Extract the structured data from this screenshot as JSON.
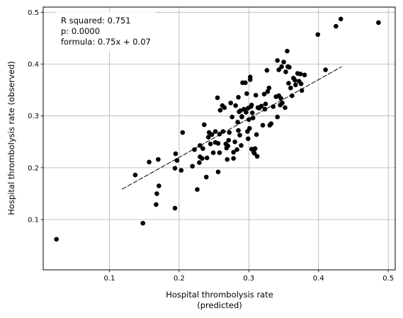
{
  "chart_data": {
    "type": "scatter",
    "xlabel": "Hospital thrombolysis rate",
    "xlabel_line2": "(predicted)",
    "ylabel": "Hospital thrombolysis rate (observed)",
    "xlim": [
      0.005,
      0.51
    ],
    "ylim": [
      0.003,
      0.51
    ],
    "xticks": [
      0.1,
      0.2,
      0.3,
      0.4,
      0.5
    ],
    "yticks": [
      0.1,
      0.2,
      0.3,
      0.4,
      0.5
    ],
    "xtick_labels": [
      "0.1",
      "0.2",
      "0.3",
      "0.4",
      "0.5"
    ],
    "ytick_labels": [
      "0.1",
      "0.2",
      "0.3",
      "0.4",
      "0.5"
    ],
    "grid": true,
    "legend": "top-left",
    "annotation": {
      "line1": "R squared: 0.751",
      "line2": "p: 0.0000",
      "line3": "formula: 0.75x + 0.07"
    },
    "fit_line": {
      "slope": 0.75,
      "intercept": 0.07,
      "x_range": [
        0.118,
        0.433
      ],
      "style": "dashed"
    },
    "point_color": "#000000",
    "points": [
      [
        0.024,
        0.062
      ],
      [
        0.148,
        0.093
      ],
      [
        0.137,
        0.186
      ],
      [
        0.157,
        0.211
      ],
      [
        0.17,
        0.216
      ],
      [
        0.194,
        0.122
      ],
      [
        0.167,
        0.129
      ],
      [
        0.168,
        0.15
      ],
      [
        0.171,
        0.165
      ],
      [
        0.194,
        0.199
      ],
      [
        0.195,
        0.227
      ],
      [
        0.203,
        0.195
      ],
      [
        0.197,
        0.214
      ],
      [
        0.205,
        0.268
      ],
      [
        0.219,
        0.203
      ],
      [
        0.222,
        0.235
      ],
      [
        0.226,
        0.158
      ],
      [
        0.229,
        0.21
      ],
      [
        0.23,
        0.221
      ],
      [
        0.23,
        0.243
      ],
      [
        0.233,
        0.218
      ],
      [
        0.234,
        0.237
      ],
      [
        0.236,
        0.283
      ],
      [
        0.239,
        0.182
      ],
      [
        0.24,
        0.219
      ],
      [
        0.242,
        0.259
      ],
      [
        0.243,
        0.268
      ],
      [
        0.245,
        0.246
      ],
      [
        0.247,
        0.264
      ],
      [
        0.249,
        0.229
      ],
      [
        0.252,
        0.249
      ],
      [
        0.252,
        0.27
      ],
      [
        0.255,
        0.335
      ],
      [
        0.256,
        0.192
      ],
      [
        0.256,
        0.247
      ],
      [
        0.258,
        0.265
      ],
      [
        0.258,
        0.229
      ],
      [
        0.259,
        0.311
      ],
      [
        0.262,
        0.32
      ],
      [
        0.263,
        0.27
      ],
      [
        0.265,
        0.316
      ],
      [
        0.267,
        0.246
      ],
      [
        0.268,
        0.238
      ],
      [
        0.269,
        0.216
      ],
      [
        0.27,
        0.242
      ],
      [
        0.271,
        0.253
      ],
      [
        0.272,
        0.268
      ],
      [
        0.274,
        0.325
      ],
      [
        0.276,
        0.298
      ],
      [
        0.278,
        0.23
      ],
      [
        0.278,
        0.218
      ],
      [
        0.28,
        0.25
      ],
      [
        0.281,
        0.32
      ],
      [
        0.283,
        0.235
      ],
      [
        0.284,
        0.288
      ],
      [
        0.285,
        0.272
      ],
      [
        0.285,
        0.336
      ],
      [
        0.286,
        0.308
      ],
      [
        0.287,
        0.263
      ],
      [
        0.288,
        0.31
      ],
      [
        0.289,
        0.243
      ],
      [
        0.29,
        0.298
      ],
      [
        0.29,
        0.299
      ],
      [
        0.291,
        0.364
      ],
      [
        0.293,
        0.313
      ],
      [
        0.295,
        0.364
      ],
      [
        0.296,
        0.307
      ],
      [
        0.297,
        0.343
      ],
      [
        0.298,
        0.27
      ],
      [
        0.299,
        0.256
      ],
      [
        0.299,
        0.315
      ],
      [
        0.3,
        0.293
      ],
      [
        0.301,
        0.276
      ],
      [
        0.302,
        0.375
      ],
      [
        0.302,
        0.37
      ],
      [
        0.303,
        0.318
      ],
      [
        0.304,
        0.321
      ],
      [
        0.304,
        0.236
      ],
      [
        0.305,
        0.306
      ],
      [
        0.306,
        0.296
      ],
      [
        0.307,
        0.23
      ],
      [
        0.308,
        0.228
      ],
      [
        0.309,
        0.237
      ],
      [
        0.31,
        0.34
      ],
      [
        0.311,
        0.264
      ],
      [
        0.312,
        0.222
      ],
      [
        0.313,
        0.316
      ],
      [
        0.315,
        0.315
      ],
      [
        0.318,
        0.319
      ],
      [
        0.32,
        0.282
      ],
      [
        0.322,
        0.342
      ],
      [
        0.323,
        0.313
      ],
      [
        0.324,
        0.323
      ],
      [
        0.326,
        0.388
      ],
      [
        0.327,
        0.347
      ],
      [
        0.329,
        0.354
      ],
      [
        0.33,
        0.282
      ],
      [
        0.332,
        0.285
      ],
      [
        0.335,
        0.318
      ],
      [
        0.339,
        0.337
      ],
      [
        0.341,
        0.298
      ],
      [
        0.341,
        0.407
      ],
      [
        0.343,
        0.339
      ],
      [
        0.343,
        0.389
      ],
      [
        0.345,
        0.321
      ],
      [
        0.346,
        0.334
      ],
      [
        0.347,
        0.395
      ],
      [
        0.348,
        0.325
      ],
      [
        0.35,
        0.404
      ],
      [
        0.352,
        0.316
      ],
      [
        0.353,
        0.385
      ],
      [
        0.355,
        0.425
      ],
      [
        0.356,
        0.395
      ],
      [
        0.357,
        0.363
      ],
      [
        0.358,
        0.394
      ],
      [
        0.36,
        0.354
      ],
      [
        0.362,
        0.339
      ],
      [
        0.364,
        0.373
      ],
      [
        0.366,
        0.369
      ],
      [
        0.367,
        0.36
      ],
      [
        0.37,
        0.382
      ],
      [
        0.372,
        0.367
      ],
      [
        0.374,
        0.381
      ],
      [
        0.375,
        0.362
      ],
      [
        0.376,
        0.349
      ],
      [
        0.38,
        0.379
      ],
      [
        0.399,
        0.457
      ],
      [
        0.41,
        0.389
      ],
      [
        0.425,
        0.473
      ],
      [
        0.432,
        0.487
      ],
      [
        0.486,
        0.48
      ]
    ]
  }
}
